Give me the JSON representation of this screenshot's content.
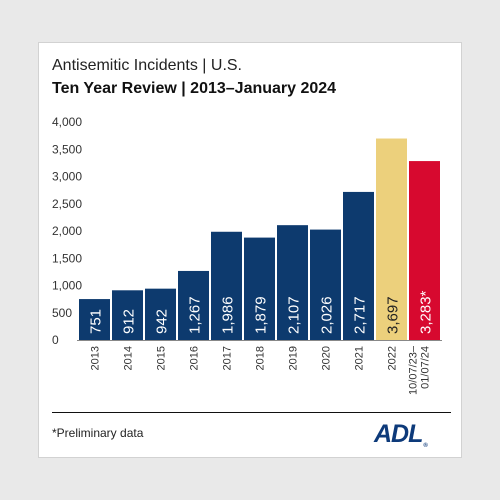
{
  "header": {
    "title": "Antisemitic Incidents | U.S.",
    "subtitle": "Ten Year Review | 2013–January 2024"
  },
  "chart_data": {
    "type": "bar",
    "title": "Antisemitic Incidents | U.S.",
    "subtitle": "Ten Year Review | 2013–January 2024",
    "xlabel": "",
    "ylabel": "",
    "ylim": [
      0,
      4000
    ],
    "yticks": [
      0,
      500,
      1000,
      1500,
      2000,
      2500,
      3000,
      3500,
      4000
    ],
    "ytick_labels": [
      "0",
      "500",
      "1,000",
      "1,500",
      "2,000",
      "2,500",
      "3,000",
      "3,500",
      "4,000"
    ],
    "grid": false,
    "categories": [
      "2013",
      "2014",
      "2015",
      "2016",
      "2017",
      "2018",
      "2019",
      "2020",
      "2021",
      "2022",
      "10/07/23– 01/07/24"
    ],
    "values": [
      751,
      912,
      942,
      1267,
      1986,
      1879,
      2107,
      2026,
      2717,
      3697,
      3283
    ],
    "data_labels": [
      "751",
      "912",
      "942",
      "1,267",
      "1,986",
      "1,879",
      "2,107",
      "2,026",
      "2,717",
      "3,697",
      "3,283*"
    ],
    "colors": [
      "#0d3a6e",
      "#0d3a6e",
      "#0d3a6e",
      "#0d3a6e",
      "#0d3a6e",
      "#0d3a6e",
      "#0d3a6e",
      "#0d3a6e",
      "#0d3a6e",
      "#ecd07c",
      "#d7092f"
    ]
  },
  "footer": {
    "footnote": "*Preliminary data",
    "logo_text": "ADL",
    "logo_mark": "®"
  }
}
